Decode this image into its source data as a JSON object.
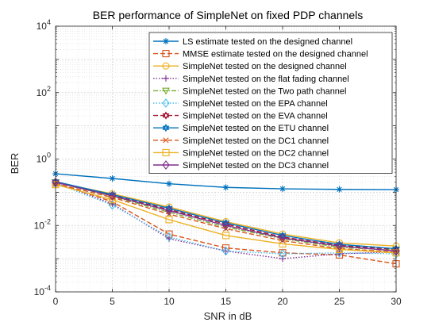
{
  "chart_data": {
    "type": "line",
    "title": "BER performance of SimpleNet on fixed PDP channels",
    "xlabel": "SNR in dB",
    "ylabel": "BER",
    "y_scale": "log",
    "xlim": [
      0,
      30
    ],
    "ylim": [
      0.0001,
      10000
    ],
    "x_ticks": [
      "0",
      "5",
      "10",
      "15",
      "20",
      "25",
      "30"
    ],
    "y_tick_base": "10",
    "y_tick_exponents": [
      "-4",
      "-2",
      "0",
      "2",
      "4"
    ],
    "grid": true,
    "legend_position": "top-right",
    "x": [
      0,
      5,
      10,
      15,
      20,
      25,
      30
    ],
    "series": [
      {
        "name": "LS estimate tested on the designed channel",
        "color": "#0072BD",
        "dash": "solid",
        "marker": "asterisk",
        "values": [
          0.36,
          0.26,
          0.18,
          0.14,
          0.127,
          0.122,
          0.12
        ]
      },
      {
        "name": "MMSE estimate tested on the designed channel",
        "color": "#D95319",
        "dash": "dashed",
        "marker": "square",
        "values": [
          0.19,
          0.052,
          0.0055,
          0.0021,
          0.0015,
          0.0013,
          0.0007
        ]
      },
      {
        "name": "SimpleNet tested on the designed channel",
        "color": "#EDB120",
        "dash": "solid",
        "marker": "circle",
        "values": [
          0.2,
          0.09,
          0.036,
          0.013,
          0.0055,
          0.003,
          0.0024
        ]
      },
      {
        "name": "SimpleNet tested on the flat fading channel",
        "color": "#7E2F8E",
        "dash": "dotted",
        "marker": "plus",
        "values": [
          0.19,
          0.045,
          0.004,
          0.0017,
          0.001,
          0.0014,
          0.0016
        ]
      },
      {
        "name": "SimpleNet tested on the Two path channel",
        "color": "#77AC30",
        "dash": "dashdot",
        "marker": "triangle-down",
        "values": [
          0.2,
          0.075,
          0.025,
          0.009,
          0.004,
          0.0022,
          0.0018
        ]
      },
      {
        "name": "SimpleNet tested on the EPA channel",
        "color": "#4DBEEE",
        "dash": "dotted",
        "marker": "diamond",
        "values": [
          0.19,
          0.041,
          0.0045,
          0.0017,
          0.0014,
          0.0015,
          0.0014
        ]
      },
      {
        "name": "SimpleNet tested on the EVA channel",
        "color": "#A2142F",
        "dash": "dashed",
        "marker": "hexagram",
        "values": [
          0.2,
          0.08,
          0.03,
          0.011,
          0.0045,
          0.0025,
          0.0019
        ]
      },
      {
        "name": "SimpleNet tested on the ETU channel",
        "color": "#0072BD",
        "dash": "solid",
        "marker": "hexagram",
        "values": [
          0.21,
          0.085,
          0.033,
          0.012,
          0.005,
          0.0027,
          0.002
        ]
      },
      {
        "name": "SimpleNet tested on the DC1 channel",
        "color": "#D95319",
        "dash": "dashed",
        "marker": "x",
        "values": [
          0.18,
          0.07,
          0.022,
          0.008,
          0.0035,
          0.002,
          0.0016
        ]
      },
      {
        "name": "SimpleNet tested on the DC2 channel",
        "color": "#EDB120",
        "dash": "solid",
        "marker": "square",
        "values": [
          0.17,
          0.06,
          0.015,
          0.005,
          0.0028,
          0.0019,
          0.0015
        ]
      },
      {
        "name": "SimpleNet tested on the DC3 channel",
        "color": "#7E2F8E",
        "dash": "solid",
        "marker": "diamond",
        "values": [
          0.2,
          0.078,
          0.028,
          0.01,
          0.0042,
          0.0024,
          0.0017
        ]
      }
    ]
  }
}
